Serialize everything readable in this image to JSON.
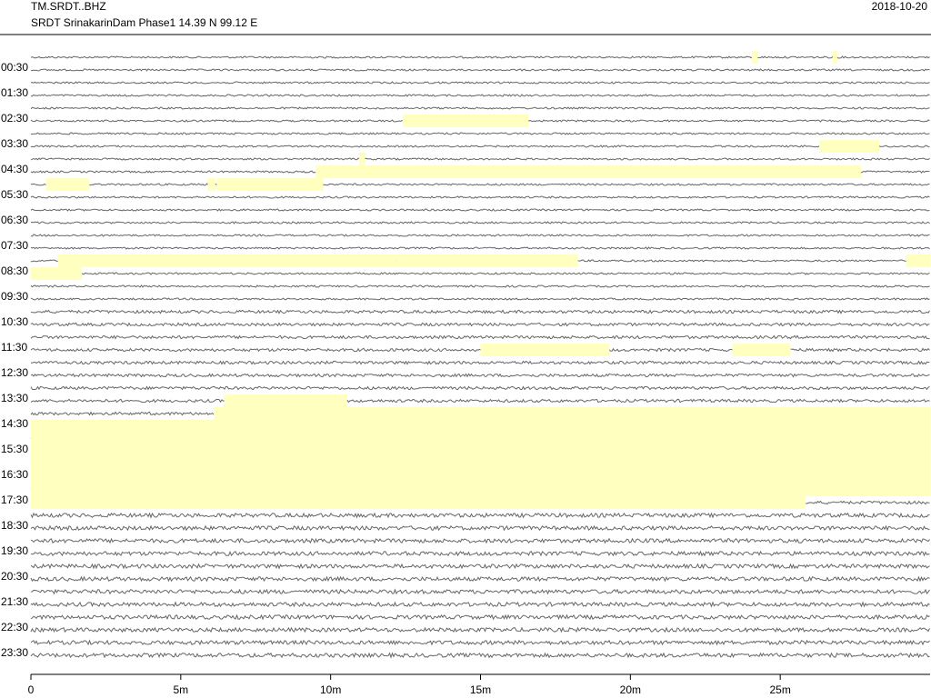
{
  "chart_data": {
    "type": "helicorder",
    "title": "TM.SRDT..BHZ",
    "subtitle": "SRDT SrinakarinDam Phase1  14.39 N 99.12 E",
    "date": "2018-10-20",
    "categories": [
      null,
      "00:30",
      null,
      "01:30",
      null,
      "02:30",
      null,
      "03:30",
      null,
      "04:30",
      null,
      "05:30",
      null,
      "06:30",
      null,
      "07:30",
      null,
      "08:30",
      null,
      "09:30",
      null,
      "10:30",
      null,
      "11:30",
      null,
      "12:30",
      null,
      "13:30",
      null,
      "14:30",
      null,
      "15:30",
      null,
      "16:30",
      null,
      "17:30",
      null,
      "18:30",
      null,
      "19:30",
      null,
      "20:30",
      null,
      "21:30",
      null,
      "22:30",
      null,
      "23:30"
    ],
    "xlim": [
      0,
      30
    ],
    "xticks": [
      0,
      {
        "value": 5,
        "label": "5m"
      },
      {
        "value": 10,
        "label": "10m"
      },
      {
        "value": 15,
        "label": "15m"
      },
      {
        "value": 20,
        "label": "20m"
      },
      {
        "value": 25,
        "label": "25m"
      }
    ],
    "color": "#666666",
    "gap_color": "#ffffc0",
    "gaps": [
      {
        "row": 0,
        "start": 24.05,
        "end": 24.25
      },
      {
        "row": 0,
        "start": 26.75,
        "end": 26.9
      },
      {
        "row": 5,
        "start": 12.4,
        "end": 16.6
      },
      {
        "row": 7,
        "start": 26.3,
        "end": 28.3
      },
      {
        "row": 8,
        "start": 10.95,
        "end": 11.15
      },
      {
        "row": 9,
        "start": 9.5,
        "end": 27.7
      },
      {
        "row": 10,
        "start": 0.5,
        "end": 1.95
      },
      {
        "row": 10,
        "start": 5.9,
        "end": 6.15
      },
      {
        "row": 10,
        "start": 6.2,
        "end": 9.75
      },
      {
        "row": 16,
        "start": 0.9,
        "end": 12.2
      },
      {
        "row": 16,
        "start": 12.2,
        "end": 18.25
      },
      {
        "row": 16,
        "start": 29.2,
        "end": 30
      },
      {
        "row": 17,
        "start": 0,
        "end": 1.7
      },
      {
        "row": 23,
        "start": 15,
        "end": 19.3
      },
      {
        "row": 23,
        "start": 23.4,
        "end": 25.35
      },
      {
        "row": 27,
        "start": 6.45,
        "end": 10.55
      },
      {
        "row": 28,
        "start": 6.1,
        "end": 30
      },
      {
        "row": 29,
        "start": 0,
        "end": 30
      },
      {
        "row": 30,
        "start": 0,
        "end": 30
      },
      {
        "row": 31,
        "start": 0,
        "end": 30
      },
      {
        "row": 32,
        "start": 0,
        "end": 30
      },
      {
        "row": 33,
        "start": 0,
        "end": 30
      },
      {
        "row": 34,
        "start": 0,
        "end": 30
      },
      {
        "row": 35,
        "start": 0,
        "end": 25.85
      }
    ]
  }
}
